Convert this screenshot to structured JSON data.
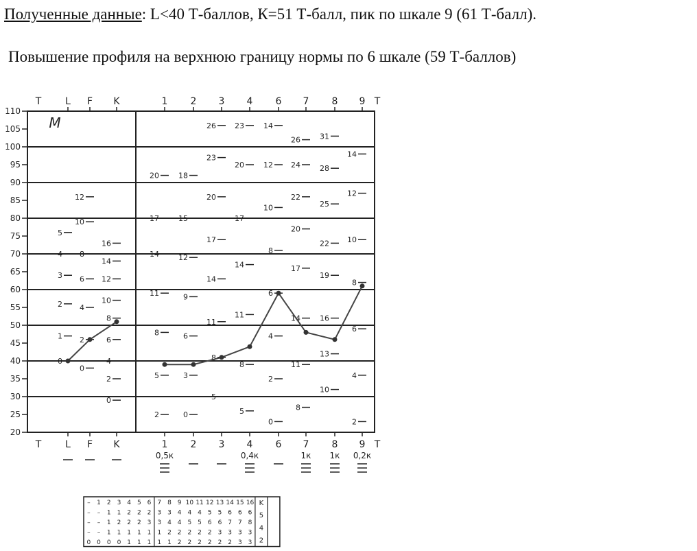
{
  "header": {
    "lead": "Полученные данные",
    "text": ": L<40 Т-баллов, К=51 Т-балл, пик по шкале 9 (61 Т-балл).",
    "note": "Повышение профиля на верхнюю границу нормы по 6 шкале (59 Т-баллов)"
  },
  "chart_data": {
    "type": "line",
    "title": "",
    "sex_label": "M",
    "axis_label": "T",
    "ylim": [
      20,
      110
    ],
    "yticks": [
      "110",
      "105",
      "100",
      "95",
      "90",
      "85",
      "80",
      "75",
      "70",
      "65",
      "60",
      "55",
      "50",
      "45",
      "40",
      "35",
      "30",
      "25",
      "20"
    ],
    "validity_scales": [
      "L",
      "F",
      "K"
    ],
    "clinical_scales": [
      "1",
      "2",
      "3",
      "4",
      "6",
      "7",
      "8",
      "9"
    ],
    "k_correction": [
      "0,5к",
      "",
      "",
      "0,4к",
      "",
      "1к",
      "1к",
      "0,2к"
    ],
    "series": [
      {
        "name": "validity",
        "categories": [
          "L",
          "F",
          "K"
        ],
        "values": [
          40,
          46,
          51
        ]
      },
      {
        "name": "clinical",
        "categories": [
          "1",
          "2",
          "3",
          "4",
          "6",
          "7",
          "8",
          "9"
        ],
        "values": [
          39,
          39,
          41,
          44,
          59,
          48,
          46,
          61
        ]
      }
    ],
    "raw_labels": {
      "L": [
        {
          "t": 76,
          "v": "5"
        },
        {
          "t": 70,
          "v": "4"
        },
        {
          "t": 64,
          "v": "3"
        },
        {
          "t": 56,
          "v": "2"
        },
        {
          "t": 47,
          "v": "1"
        },
        {
          "t": 40,
          "v": "0"
        }
      ],
      "F": [
        {
          "t": 86,
          "v": "12"
        },
        {
          "t": 79,
          "v": "10"
        },
        {
          "t": 70,
          "v": "8"
        },
        {
          "t": 63,
          "v": "6"
        },
        {
          "t": 55,
          "v": "4"
        },
        {
          "t": 46,
          "v": "2"
        },
        {
          "t": 38,
          "v": "0"
        }
      ],
      "K": [
        {
          "t": 73,
          "v": "16"
        },
        {
          "t": 68,
          "v": "14"
        },
        {
          "t": 63,
          "v": "12"
        },
        {
          "t": 57,
          "v": "10"
        },
        {
          "t": 52,
          "v": "8"
        },
        {
          "t": 46,
          "v": "6"
        },
        {
          "t": 40,
          "v": "4"
        },
        {
          "t": 35,
          "v": "2"
        },
        {
          "t": 29,
          "v": "0"
        }
      ],
      "1": [
        {
          "t": 92,
          "v": "20"
        },
        {
          "t": 80,
          "v": "17"
        },
        {
          "t": 70,
          "v": "14"
        },
        {
          "t": 59,
          "v": "11"
        },
        {
          "t": 48,
          "v": "8"
        },
        {
          "t": 36,
          "v": "5"
        },
        {
          "t": 25,
          "v": "2"
        }
      ],
      "2": [
        {
          "t": 92,
          "v": "18"
        },
        {
          "t": 80,
          "v": "15"
        },
        {
          "t": 69,
          "v": "12"
        },
        {
          "t": 58,
          "v": "9"
        },
        {
          "t": 47,
          "v": "6"
        },
        {
          "t": 36,
          "v": "3"
        },
        {
          "t": 25,
          "v": "0"
        }
      ],
      "3": [
        {
          "t": 106,
          "v": "26"
        },
        {
          "t": 97,
          "v": "23"
        },
        {
          "t": 86,
          "v": "20"
        },
        {
          "t": 74,
          "v": "17"
        },
        {
          "t": 63,
          "v": "14"
        },
        {
          "t": 51,
          "v": "11"
        },
        {
          "t": 41,
          "v": "8"
        },
        {
          "t": 30,
          "v": "5"
        }
      ],
      "4": [
        {
          "t": 106,
          "v": "23"
        },
        {
          "t": 95,
          "v": "20"
        },
        {
          "t": 80,
          "v": "17"
        },
        {
          "t": 67,
          "v": "14"
        },
        {
          "t": 53,
          "v": "11"
        },
        {
          "t": 39,
          "v": "8"
        },
        {
          "t": 26,
          "v": "5"
        }
      ],
      "6": [
        {
          "t": 106,
          "v": "14"
        },
        {
          "t": 95,
          "v": "12"
        },
        {
          "t": 83,
          "v": "10"
        },
        {
          "t": 71,
          "v": "8"
        },
        {
          "t": 59,
          "v": "6"
        },
        {
          "t": 47,
          "v": "4"
        },
        {
          "t": 35,
          "v": "2"
        },
        {
          "t": 23,
          "v": "0"
        }
      ],
      "7": [
        {
          "t": 102,
          "v": "26"
        },
        {
          "t": 95,
          "v": "24"
        },
        {
          "t": 86,
          "v": "22"
        },
        {
          "t": 77,
          "v": "20"
        },
        {
          "t": 66,
          "v": "17"
        },
        {
          "t": 52,
          "v": "14"
        },
        {
          "t": 39,
          "v": "11"
        },
        {
          "t": 27,
          "v": "8"
        }
      ],
      "8": [
        {
          "t": 103,
          "v": "31"
        },
        {
          "t": 94,
          "v": "28"
        },
        {
          "t": 84,
          "v": "25"
        },
        {
          "t": 73,
          "v": "22"
        },
        {
          "t": 64,
          "v": "19"
        },
        {
          "t": 52,
          "v": "16"
        },
        {
          "t": 42,
          "v": "13"
        },
        {
          "t": 32,
          "v": "10"
        }
      ],
      "9": [
        {
          "t": 98,
          "v": "14"
        },
        {
          "t": 87,
          "v": "12"
        },
        {
          "t": 74,
          "v": "10"
        },
        {
          "t": 62,
          "v": "8"
        },
        {
          "t": 49,
          "v": "6"
        },
        {
          "t": 36,
          "v": "4"
        },
        {
          "t": 23,
          "v": "2"
        }
      ]
    },
    "k_table": {
      "rows": [
        [
          "–",
          "1",
          "2",
          "3",
          "4",
          "5",
          "6",
          "7",
          "8",
          "9",
          "10",
          "11",
          "12",
          "13",
          "14",
          "15",
          "16"
        ],
        [
          "–",
          "–",
          "1",
          "1",
          "2",
          "2",
          "2",
          "3",
          "3",
          "4",
          "4",
          "4",
          "5",
          "5",
          "6",
          "6",
          "6"
        ],
        [
          "–",
          "–",
          "1",
          "2",
          "2",
          "2",
          "3",
          "3",
          "4",
          "4",
          "5",
          "5",
          "6",
          "6",
          "7",
          "7",
          "8"
        ],
        [
          "–",
          "–",
          "1",
          "1",
          "1",
          "1",
          "1",
          "1",
          "2",
          "2",
          "2",
          "2",
          "2",
          "3",
          "3",
          "3",
          "3"
        ],
        [
          "0",
          "0",
          "0",
          "0",
          "1",
          "1",
          "1",
          "1",
          "1",
          "2",
          "2",
          "2",
          "2",
          "2",
          "2",
          "3",
          "3"
        ]
      ],
      "scale_labels": [
        "K",
        "5",
        "4",
        "2"
      ]
    },
    "colors": {
      "line": "#444444",
      "grid": "#222222",
      "dots": "#333333"
    }
  }
}
